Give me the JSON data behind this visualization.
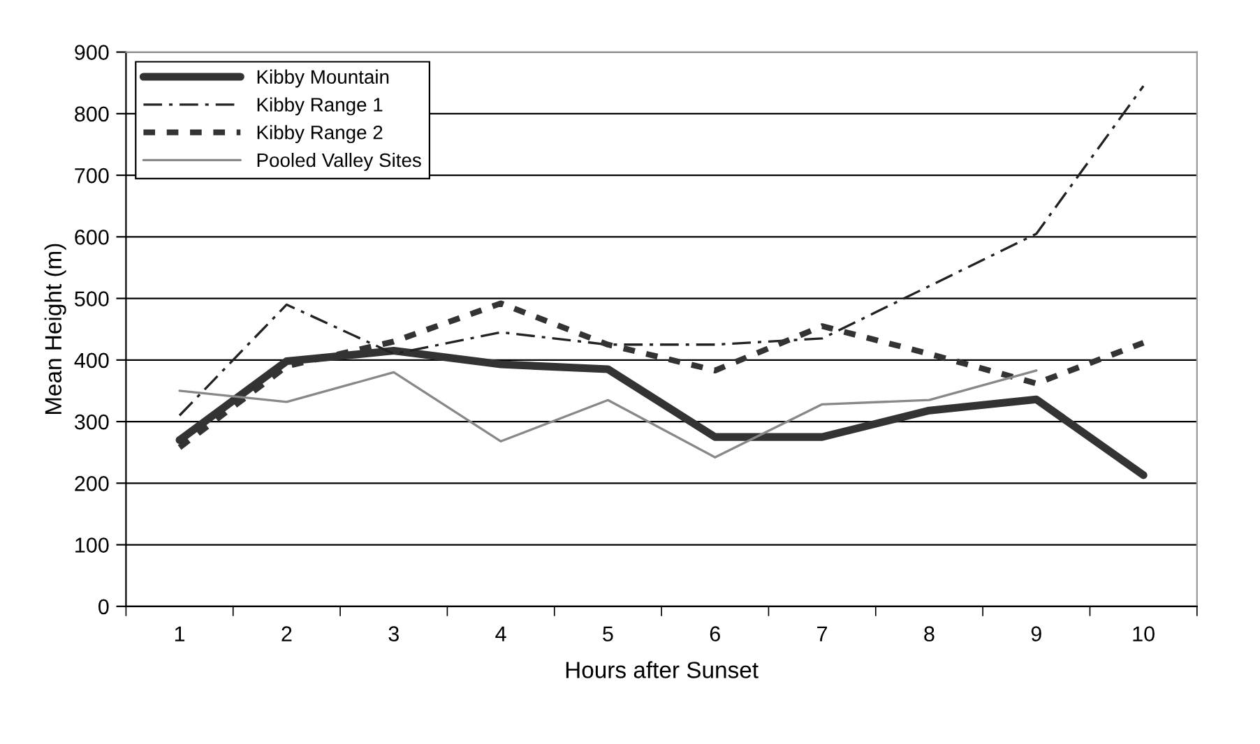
{
  "chart_data": {
    "type": "line",
    "xlabel": "Hours after Sunset",
    "ylabel": "Mean Height (m)",
    "categories": [
      "1",
      "2",
      "3",
      "4",
      "5",
      "6",
      "7",
      "8",
      "9",
      "10"
    ],
    "series": [
      {
        "name": "Kibby Mountain",
        "color": "#333333",
        "line_style": "solid",
        "values": [
          270,
          398,
          415,
          393,
          385,
          275,
          275,
          318,
          336,
          213
        ]
      },
      {
        "name": "Kibby Range 1",
        "color": "#222222",
        "line_style": "dashdot",
        "values": [
          310,
          490,
          410,
          445,
          425,
          425,
          435,
          520,
          605,
          845
        ]
      },
      {
        "name": "Kibby Range 2",
        "color": "#333333",
        "line_style": "dotted",
        "values": [
          258,
          390,
          430,
          492,
          425,
          383,
          455,
          410,
          362,
          428
        ]
      },
      {
        "name": "Pooled Valley Sites",
        "color": "#888888",
        "line_style": "solid",
        "values": [
          350,
          332,
          380,
          268,
          335,
          242,
          328,
          335,
          383,
          null
        ]
      }
    ],
    "ylim": [
      0,
      900
    ],
    "yticks": [
      0,
      100,
      200,
      300,
      400,
      500,
      600,
      700,
      800,
      900
    ],
    "grid": "y",
    "legend": "top left",
    "marker": "none"
  }
}
